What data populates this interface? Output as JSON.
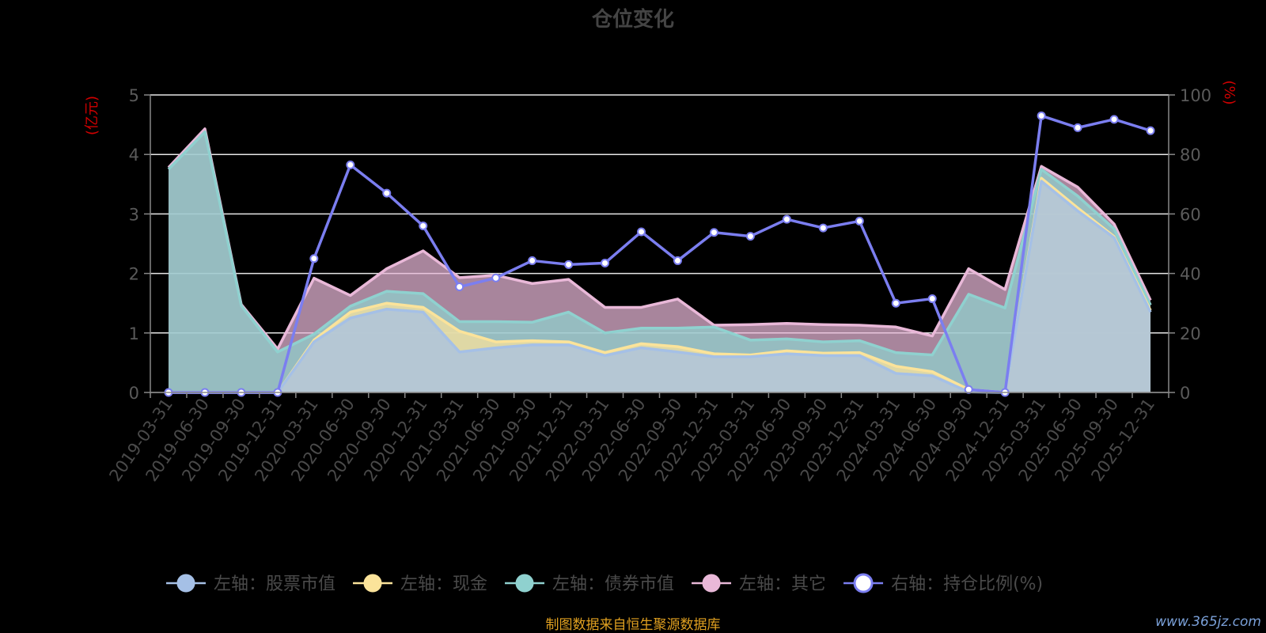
{
  "chart_data": {
    "type": "area",
    "title": "仓位变化",
    "left_axis_unit": "(亿元)",
    "right_axis_unit": "(%)",
    "left_ylim": [
      0,
      5
    ],
    "left_ticks": [
      "0",
      "1",
      "2",
      "3",
      "4",
      "5"
    ],
    "right_ylim": [
      0,
      100
    ],
    "right_ticks": [
      "0",
      "20",
      "40",
      "60",
      "80",
      "100"
    ],
    "categories": [
      "2019-03-31",
      "2019-06-30",
      "2019-09-30",
      "2019-12-31",
      "2020-03-31",
      "2020-06-30",
      "2020-09-30",
      "2020-12-31",
      "2021-03-31",
      "2021-06-30",
      "2021-09-30",
      "2021-12-31",
      "2022-03-31",
      "2022-06-30",
      "2022-09-30",
      "2022-12-31",
      "2023-03-31",
      "2023-06-30",
      "2023-09-30",
      "2023-12-31",
      "2024-03-31",
      "2024-06-30",
      "2024-09-30",
      "2024-12-31",
      "2025-03-31",
      "2025-06-30",
      "2025-09-30",
      "2025-12-31"
    ],
    "stacked_cumulative": true,
    "series": [
      {
        "name": "左轴：股票市值",
        "axis": "left",
        "color": "#a5c0e6",
        "values": [
          0,
          0,
          0,
          0,
          0.85,
          1.25,
          1.4,
          1.35,
          0.68,
          0.75,
          0.8,
          0.8,
          0.62,
          0.75,
          0.68,
          0.6,
          0.6,
          0.65,
          0.62,
          0.62,
          0.32,
          0.28,
          0.01,
          0,
          3.55,
          3.05,
          2.6,
          1.35
        ]
      },
      {
        "name": "左轴：现金",
        "axis": "left",
        "color": "#fbe39a",
        "values": [
          0,
          0,
          0,
          0,
          0.88,
          1.35,
          1.5,
          1.43,
          1.03,
          0.85,
          0.87,
          0.85,
          0.67,
          0.82,
          0.77,
          0.65,
          0.63,
          0.7,
          0.66,
          0.67,
          0.44,
          0.35,
          0.05,
          0,
          3.6,
          3.1,
          2.62,
          1.38
        ]
      },
      {
        "name": "左轴：债券市值",
        "axis": "left",
        "color": "#8fd1cf",
        "values": [
          3.75,
          4.38,
          1.46,
          0.68,
          0.98,
          1.45,
          1.7,
          1.66,
          1.19,
          1.19,
          1.18,
          1.35,
          1.0,
          1.08,
          1.08,
          1.1,
          0.88,
          0.9,
          0.85,
          0.87,
          0.67,
          0.63,
          1.65,
          1.42,
          3.75,
          3.3,
          2.75,
          1.47
        ]
      },
      {
        "name": "左轴：其它",
        "axis": "left",
        "color": "#e9b8d8",
        "values": [
          3.78,
          4.43,
          1.48,
          0.73,
          1.92,
          1.63,
          2.08,
          2.38,
          1.93,
          1.97,
          1.83,
          1.9,
          1.43,
          1.43,
          1.57,
          1.13,
          1.14,
          1.16,
          1.14,
          1.13,
          1.1,
          0.95,
          2.08,
          1.73,
          3.8,
          3.45,
          2.83,
          1.55
        ]
      },
      {
        "name": "右轴：持仓比例(%)",
        "axis": "right",
        "color": "#7b7ef0",
        "values": [
          0,
          0,
          0,
          0,
          45,
          76.5,
          67,
          56,
          35.5,
          38.5,
          44.3,
          43,
          43.5,
          54,
          44.3,
          53.8,
          52.5,
          58.2,
          55.3,
          57.6,
          30,
          31.5,
          1,
          0,
          93,
          89,
          91.8,
          88
        ]
      }
    ],
    "legend_placement": "bottom",
    "grid": true
  },
  "footer": {
    "source": "制图数据来自恒生聚源数据库",
    "watermark": "www.365jz.com"
  }
}
